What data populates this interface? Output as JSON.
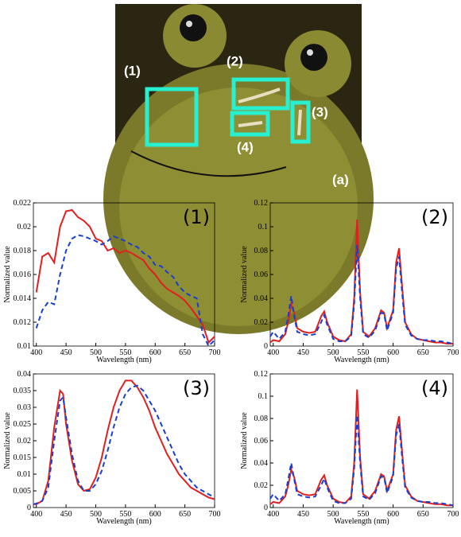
{
  "image": {
    "labels": [
      "(1)",
      "(2)",
      "(3)",
      "(4)",
      "(a)"
    ]
  },
  "chart_data": [
    {
      "type": "line",
      "title": "(1)",
      "x_label": "Wavelength (nm)",
      "y_label": "Normalized value",
      "x": [
        400,
        410,
        420,
        430,
        440,
        450,
        460,
        470,
        480,
        490,
        500,
        510,
        520,
        530,
        540,
        550,
        560,
        570,
        580,
        590,
        600,
        610,
        620,
        630,
        640,
        650,
        660,
        670,
        680,
        690,
        700
      ],
      "series": [
        {
          "color": "#e02020",
          "line_style": "solid",
          "values": [
            0.0145,
            0.0175,
            0.0178,
            0.017,
            0.02,
            0.0213,
            0.0214,
            0.0208,
            0.0205,
            0.02,
            0.019,
            0.0188,
            0.018,
            0.0182,
            0.0178,
            0.018,
            0.0178,
            0.0175,
            0.0172,
            0.0165,
            0.016,
            0.0153,
            0.0148,
            0.0145,
            0.0142,
            0.0138,
            0.0132,
            0.0125,
            0.0118,
            0.0103,
            0.0108
          ]
        },
        {
          "color": "#1a3fd0",
          "line_style": "dashed",
          "values": [
            0.0115,
            0.013,
            0.0137,
            0.0135,
            0.016,
            0.018,
            0.019,
            0.0193,
            0.0192,
            0.019,
            0.0188,
            0.0185,
            0.0188,
            0.0192,
            0.019,
            0.0188,
            0.0185,
            0.0183,
            0.0178,
            0.0175,
            0.0168,
            0.0167,
            0.0162,
            0.0158,
            0.015,
            0.0145,
            0.0142,
            0.014,
            0.011,
            0.01,
            0.0105
          ]
        }
      ],
      "xlim": [
        395,
        700
      ],
      "ylim": [
        0.01,
        0.022
      ],
      "xticks": [
        400,
        450,
        500,
        550,
        600,
        650,
        700
      ],
      "yticks": [
        0.01,
        0.012,
        0.014,
        0.016,
        0.018,
        0.02,
        0.022
      ]
    },
    {
      "type": "line",
      "title": "(2)",
      "x_label": "Wavelength (nm)",
      "y_label": "Normalized value",
      "x": [
        395,
        400,
        410,
        420,
        425,
        430,
        435,
        440,
        450,
        460,
        470,
        480,
        485,
        490,
        500,
        510,
        520,
        530,
        535,
        540,
        545,
        550,
        560,
        570,
        580,
        585,
        590,
        600,
        605,
        610,
        615,
        620,
        630,
        640,
        650,
        660,
        670,
        680,
        690,
        700
      ],
      "series": [
        {
          "color": "#e02020",
          "line_style": "solid",
          "values": [
            0.003,
            0.005,
            0.004,
            0.01,
            0.02,
            0.035,
            0.028,
            0.015,
            0.012,
            0.011,
            0.012,
            0.025,
            0.029,
            0.02,
            0.008,
            0.005,
            0.004,
            0.01,
            0.04,
            0.106,
            0.045,
            0.012,
            0.008,
            0.015,
            0.03,
            0.028,
            0.015,
            0.03,
            0.07,
            0.082,
            0.05,
            0.02,
            0.01,
            0.006,
            0.005,
            0.004,
            0.003,
            0.003,
            0.002,
            0.002
          ]
        },
        {
          "color": "#1a3fd0",
          "line_style": "dashed",
          "values": [
            0.008,
            0.012,
            0.006,
            0.012,
            0.025,
            0.042,
            0.025,
            0.012,
            0.01,
            0.009,
            0.01,
            0.02,
            0.026,
            0.018,
            0.006,
            0.004,
            0.004,
            0.008,
            0.035,
            0.085,
            0.04,
            0.01,
            0.007,
            0.013,
            0.028,
            0.027,
            0.013,
            0.028,
            0.065,
            0.075,
            0.045,
            0.018,
            0.009,
            0.006,
            0.005,
            0.005,
            0.004,
            0.004,
            0.003,
            0.002
          ]
        }
      ],
      "xlim": [
        395,
        700
      ],
      "ylim": [
        0,
        0.12
      ],
      "xticks": [
        400,
        450,
        500,
        550,
        600,
        650,
        700
      ],
      "yticks": [
        0,
        0.02,
        0.04,
        0.06,
        0.08,
        0.1,
        0.12
      ]
    },
    {
      "type": "line",
      "title": "(3)",
      "x_label": "Wavelength (nm)",
      "y_label": "Normalized value",
      "x": [
        395,
        400,
        410,
        420,
        430,
        440,
        445,
        450,
        460,
        470,
        480,
        490,
        500,
        510,
        520,
        530,
        540,
        550,
        560,
        570,
        580,
        590,
        600,
        610,
        620,
        630,
        640,
        650,
        660,
        670,
        680,
        690,
        700
      ],
      "series": [
        {
          "color": "#e02020",
          "line_style": "solid",
          "values": [
            0.001,
            0.001,
            0.002,
            0.008,
            0.024,
            0.035,
            0.034,
            0.025,
            0.014,
            0.007,
            0.005,
            0.0055,
            0.009,
            0.015,
            0.023,
            0.03,
            0.035,
            0.038,
            0.038,
            0.036,
            0.033,
            0.029,
            0.024,
            0.02,
            0.016,
            0.013,
            0.01,
            0.008,
            0.006,
            0.005,
            0.004,
            0.003,
            0.0025
          ]
        },
        {
          "color": "#1a3fd0",
          "line_style": "dashed",
          "values": [
            0.001,
            0.0012,
            0.002,
            0.006,
            0.02,
            0.032,
            0.033,
            0.027,
            0.016,
            0.008,
            0.005,
            0.005,
            0.007,
            0.011,
            0.017,
            0.024,
            0.03,
            0.034,
            0.036,
            0.0365,
            0.035,
            0.032,
            0.029,
            0.025,
            0.021,
            0.017,
            0.013,
            0.01,
            0.008,
            0.006,
            0.005,
            0.004,
            0.003
          ]
        }
      ],
      "xlim": [
        395,
        700
      ],
      "ylim": [
        0,
        0.04
      ],
      "xticks": [
        400,
        450,
        500,
        550,
        600,
        650,
        700
      ],
      "yticks": [
        0,
        0.005,
        0.01,
        0.015,
        0.02,
        0.025,
        0.03,
        0.035,
        0.04
      ]
    },
    {
      "type": "line",
      "title": "(4)",
      "x_label": "Wavelength (nm)",
      "y_label": "Normalized value",
      "x": [
        395,
        400,
        410,
        420,
        425,
        430,
        435,
        440,
        450,
        460,
        470,
        480,
        485,
        490,
        500,
        510,
        520,
        530,
        535,
        540,
        545,
        550,
        560,
        570,
        580,
        585,
        590,
        600,
        605,
        610,
        615,
        620,
        630,
        640,
        650,
        660,
        670,
        680,
        690,
        700
      ],
      "series": [
        {
          "color": "#e02020",
          "line_style": "solid",
          "values": [
            0.003,
            0.005,
            0.004,
            0.01,
            0.02,
            0.034,
            0.027,
            0.015,
            0.012,
            0.011,
            0.012,
            0.025,
            0.029,
            0.02,
            0.008,
            0.005,
            0.004,
            0.01,
            0.04,
            0.106,
            0.045,
            0.012,
            0.008,
            0.015,
            0.03,
            0.028,
            0.015,
            0.03,
            0.07,
            0.082,
            0.05,
            0.02,
            0.01,
            0.006,
            0.005,
            0.004,
            0.003,
            0.003,
            0.002,
            0.002
          ]
        },
        {
          "color": "#1a3fd0",
          "line_style": "dashed",
          "values": [
            0.008,
            0.012,
            0.006,
            0.012,
            0.025,
            0.04,
            0.025,
            0.012,
            0.01,
            0.009,
            0.01,
            0.02,
            0.026,
            0.018,
            0.006,
            0.004,
            0.004,
            0.008,
            0.035,
            0.083,
            0.04,
            0.01,
            0.007,
            0.013,
            0.028,
            0.027,
            0.013,
            0.028,
            0.065,
            0.075,
            0.045,
            0.018,
            0.009,
            0.006,
            0.005,
            0.005,
            0.004,
            0.004,
            0.003,
            0.002
          ]
        }
      ],
      "xlim": [
        395,
        700
      ],
      "ylim": [
        0,
        0.12
      ],
      "xticks": [
        400,
        450,
        500,
        550,
        600,
        650,
        700
      ],
      "yticks": [
        0,
        0.02,
        0.04,
        0.06,
        0.08,
        0.1,
        0.12
      ]
    }
  ]
}
